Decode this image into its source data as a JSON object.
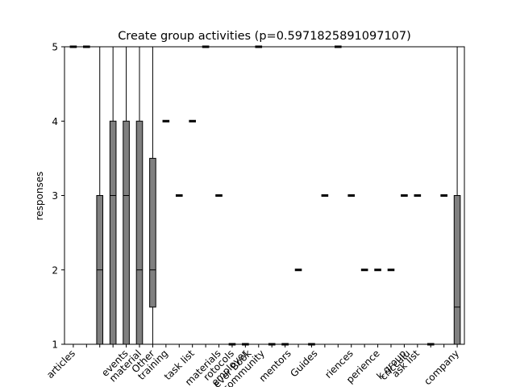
{
  "chart_data": {
    "type": "box",
    "title": "Create group activities (p=0.5971825891097107)",
    "xlabel": "",
    "ylabel": "responses",
    "ylim": [
      1,
      5
    ],
    "yticks": [
      1,
      2,
      3,
      4,
      5
    ],
    "grid": false,
    "legend": "none",
    "box_color": "#808080",
    "boxes": [
      {
        "label": "articles",
        "values": [
          5
        ]
      },
      {
        "label": "",
        "values": [
          5
        ]
      },
      {
        "label": "",
        "whislo": 1,
        "q1": 1,
        "med": 2,
        "q3": 3,
        "whishi": 5
      },
      {
        "label": "",
        "whislo": 1,
        "q1": 1,
        "med": 3,
        "q3": 4,
        "whishi": 5
      },
      {
        "label": "events",
        "whislo": 1,
        "q1": 1,
        "med": 3,
        "q3": 4,
        "whishi": 5
      },
      {
        "label": "material",
        "whislo": 1,
        "q1": 1,
        "med": 2,
        "q3": 4,
        "whishi": 5
      },
      {
        "label": "Other",
        "whislo": 1,
        "q1": 1.5,
        "med": 2,
        "q3": 3.5,
        "whishi": 5
      },
      {
        "label": "training",
        "values": [
          4
        ]
      },
      {
        "label": "",
        "values": [
          3
        ]
      },
      {
        "label": "task list",
        "values": [
          4
        ]
      },
      {
        "label": "",
        "values": [
          5
        ]
      },
      {
        "label": "materials",
        "values": [
          3
        ]
      },
      {
        "label": "rotocols",
        "values": [
          1
        ]
      },
      {
        "label": "employer",
        "values": [
          1
        ]
      },
      {
        "label": "",
        "values": [
          5
        ]
      },
      {
        "label": "",
        "values": [
          1
        ]
      },
      {
        "label": "",
        "values": [
          1
        ]
      },
      {
        "label": "",
        "values": [
          2
        ]
      },
      {
        "label": "",
        "values": [
          1
        ]
      },
      {
        "label": "",
        "values": [
          3
        ]
      },
      {
        "label": "",
        "values": [
          5
        ]
      },
      {
        "label": "riences",
        "values": [
          3
        ]
      },
      {
        "label": "",
        "values": [
          2
        ]
      },
      {
        "label": "perience",
        "values": [
          2
        ]
      },
      {
        "label": "",
        "values": [
          2
        ]
      },
      {
        "label": "k group",
        "values": [
          3
        ]
      },
      {
        "label": "ask list",
        "values": [
          3
        ]
      },
      {
        "label": "",
        "values": [
          1
        ]
      },
      {
        "label": "",
        "values": [
          3
        ]
      },
      {
        "label": "company",
        "whislo": 1,
        "q1": 1,
        "med": 1.5,
        "q3": 3,
        "whishi": 5
      }
    ],
    "extra_labels": [
      "ever Book",
      "community",
      "",
      "mentors",
      "",
      "Guides",
      "",
      "",
      "",
      "",
      "",
      "",
      "cricculu"
    ]
  }
}
